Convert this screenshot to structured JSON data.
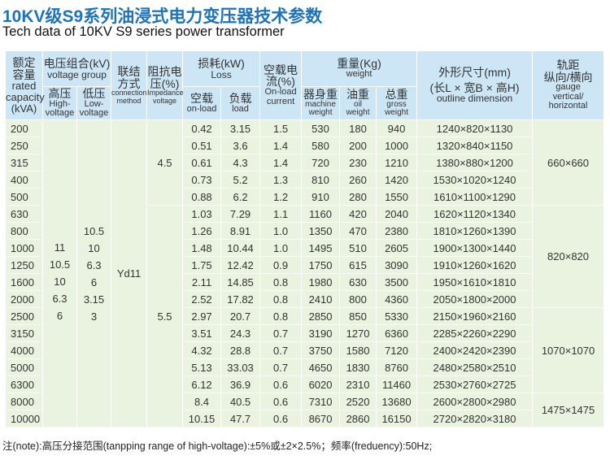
{
  "title": "10KV级S9系列油浸式电力变压器技术参数",
  "subtitle": "Tech data of 10KV S9 series power  transformer",
  "header": {
    "capacity": {
      "cn1": "额定",
      "cn2": "容量",
      "en1": "rated",
      "en2": "capacity",
      "en3": "(kVA)"
    },
    "voltage_group": {
      "cn": "电压组合(kV)",
      "en": "voltage group"
    },
    "high": {
      "cn": "高压",
      "en1": "High-",
      "en2": "voltage"
    },
    "low": {
      "cn": "低压",
      "en1": "Low-",
      "en2": "voltage"
    },
    "connection": {
      "cn1": "联结",
      "cn2": "方式",
      "en1": "connection",
      "en2": "method"
    },
    "impedance": {
      "cn1": "阻抗电",
      "cn2": "压(%)",
      "en1": "Impedance",
      "en2": "voltage"
    },
    "loss": {
      "cn": "损耗(kW)",
      "en": "Loss"
    },
    "noload": {
      "cn": "空载",
      "en": "on-load"
    },
    "load": {
      "cn": "负载",
      "en": "load"
    },
    "current": {
      "cn1": "空载电",
      "cn2": "流(%)",
      "en1": "On-load",
      "en2": "current"
    },
    "weight": {
      "cn": "重量(Kg)",
      "en": "weight"
    },
    "machine": {
      "cn": "器身重",
      "en1": "machine",
      "en2": "weight"
    },
    "oil": {
      "cn": "油重",
      "en1": "oil",
      "en2": "weight"
    },
    "gross": {
      "cn": "总重",
      "en1": "gross",
      "en2": "weight"
    },
    "dimension": {
      "cn1": "外形尺寸(mm)",
      "cn2": "(长L × 宽B × 高H)",
      "en": "outline dimension"
    },
    "gauge": {
      "cn1": "轨距",
      "cn2": "纵向/横向",
      "en1": "gauge",
      "en2": "vertical/",
      "en3": "horizontal"
    }
  },
  "high_voltage": [
    "11",
    "10.5",
    "10",
    "6.3",
    "6"
  ],
  "low_voltage": [
    "10.5",
    "10",
    "6.3",
    "6",
    "3.15",
    "3"
  ],
  "connection": "Yd11",
  "impedance_groups": [
    {
      "value": "4.5",
      "rows": 5
    },
    {
      "value": "5.5",
      "rows": 13
    }
  ],
  "gauge_groups": [
    {
      "value": "660×660",
      "rows": 5
    },
    {
      "value": "820×820",
      "rows": 6
    },
    {
      "value": "1070×1070",
      "rows": 5
    },
    {
      "value": "1475×1475",
      "rows": 2
    }
  ],
  "rows": [
    [
      "200",
      "0.42",
      "3.15",
      "1.5",
      "530",
      "180",
      "940",
      "1240×820×1130"
    ],
    [
      "250",
      "0.51",
      "3.6",
      "1.4",
      "580",
      "200",
      "1000",
      "1320×840×1150"
    ],
    [
      "315",
      "0.61",
      "4.3",
      "1.4",
      "720",
      "230",
      "1210",
      "1380×880×1200"
    ],
    [
      "400",
      "0.73",
      "5.2",
      "1.3",
      "810",
      "260",
      "1420",
      "1530×1020×1240"
    ],
    [
      "500",
      "0.88",
      "6.2",
      "1.2",
      "910",
      "280",
      "1550",
      "1610×1100×1290"
    ],
    [
      "630",
      "1.03",
      "7.29",
      "1.1",
      "1160",
      "420",
      "2040",
      "1620×1120×1340"
    ],
    [
      "800",
      "1.26",
      "8.91",
      "1.0",
      "1350",
      "470",
      "2380",
      "1810×1260×1390"
    ],
    [
      "1000",
      "1.48",
      "10.44",
      "1.0",
      "1495",
      "510",
      "2605",
      "1900×1300×1440"
    ],
    [
      "1250",
      "1.75",
      "12.42",
      "0.9",
      "1750",
      "615",
      "3090",
      "1910×1260×1620"
    ],
    [
      "1600",
      "2.11",
      "14.85",
      "0.8",
      "1980",
      "630",
      "3500",
      "1950×1610×1810"
    ],
    [
      "2000",
      "2.52",
      "17.82",
      "0.8",
      "2410",
      "800",
      "4360",
      "2050×1800×2000"
    ],
    [
      "2500",
      "2.97",
      "20.7",
      "0.8",
      "2850",
      "850",
      "5330",
      "2150×1960×2160"
    ],
    [
      "3150",
      "3.51",
      "24.3",
      "0.7",
      "3190",
      "1270",
      "6360",
      "2285×2260×2290"
    ],
    [
      "4000",
      "4.32",
      "28.8",
      "0.7",
      "3750",
      "1580",
      "7120",
      "2400×2420×2390"
    ],
    [
      "5000",
      "5.13",
      "33.03",
      "0.7",
      "4650",
      "1830",
      "8760",
      "2480×2580×2510"
    ],
    [
      "6300",
      "6.12",
      "36.9",
      "0.6",
      "6020",
      "2310",
      "11460",
      "2530×2760×2725"
    ],
    [
      "8000",
      "8.4",
      "40.5",
      "0.6",
      "7310",
      "2520",
      "13680",
      "2600×2800×2980"
    ],
    [
      "10000",
      "10.15",
      "47.7",
      "0.6",
      "8670",
      "2860",
      "16150",
      "2720×2820×3180"
    ]
  ],
  "note": "注(note):高压分接范围(tanpping range of high-voltage):±5%或±2×2.5%；频率(freduency):50Hz;",
  "colors": {
    "title": "#1e73b8",
    "header_bg": "#cde6f6",
    "body_bg": "#e9f3df"
  }
}
